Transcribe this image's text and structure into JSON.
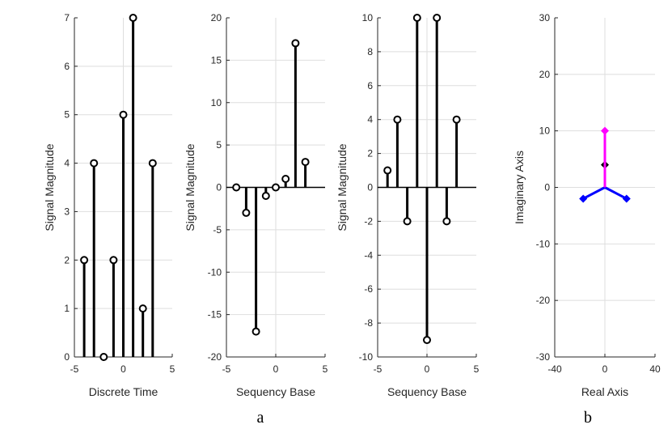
{
  "chart_data": [
    {
      "type": "stem",
      "xlabel": "Discrete Time",
      "ylabel": "Signal Magnitude",
      "xlim": [
        -5,
        5
      ],
      "ylim": [
        0,
        7
      ],
      "xticks": [
        -5,
        0,
        5
      ],
      "yticks": [
        0,
        1,
        2,
        3,
        4,
        5,
        6,
        7
      ],
      "grid": true,
      "baseline": false,
      "x": [
        -4,
        -3,
        -2,
        -1,
        0,
        1,
        2,
        3
      ],
      "values": [
        2,
        4,
        0,
        2,
        5,
        7,
        1,
        4
      ]
    },
    {
      "type": "stem",
      "xlabel": "Sequency Base",
      "ylabel": "Signal Magnitude",
      "xlim": [
        -5,
        5
      ],
      "ylim": [
        -20,
        20
      ],
      "xticks": [
        -5,
        0,
        5
      ],
      "yticks": [
        -20,
        -15,
        -10,
        -5,
        0,
        5,
        10,
        15,
        20
      ],
      "grid": true,
      "baseline": true,
      "x": [
        -4,
        -3,
        -2,
        -1,
        0,
        1,
        2,
        3
      ],
      "values": [
        0,
        -3,
        -17,
        -1,
        0,
        1,
        17,
        3
      ]
    },
    {
      "type": "stem",
      "xlabel": "Sequency Base",
      "ylabel": "Signal Magnitude",
      "xlim": [
        -5,
        5
      ],
      "ylim": [
        -10,
        10
      ],
      "xticks": [
        -5,
        0,
        5
      ],
      "yticks": [
        -10,
        -8,
        -6,
        -4,
        -2,
        0,
        2,
        4,
        6,
        8,
        10
      ],
      "grid": true,
      "baseline": true,
      "x": [
        -4,
        -3,
        -2,
        -1,
        0,
        1,
        2,
        3
      ],
      "values": [
        1,
        4,
        -2,
        10,
        -9,
        10,
        -2,
        4
      ]
    },
    {
      "type": "compass",
      "xlabel": "Real Axis",
      "ylabel": "Imaginary Axis",
      "xlim": [
        -40,
        40
      ],
      "ylim": [
        -30,
        30
      ],
      "xticks": [
        -40,
        0,
        40
      ],
      "yticks": [
        -30,
        -20,
        -10,
        0,
        10,
        20,
        30
      ],
      "grid": true,
      "series": [
        {
          "color": "#0000ff",
          "points": [
            [
              -17.3,
              -2
            ],
            [
              17.3,
              -2
            ]
          ]
        },
        {
          "color": "#000000",
          "points": [
            [
              0,
              4
            ]
          ]
        },
        {
          "color": "#ff00ff",
          "points": [
            [
              0,
              10
            ]
          ]
        }
      ]
    }
  ],
  "panel_labels": {
    "a": "a",
    "b": "b"
  }
}
